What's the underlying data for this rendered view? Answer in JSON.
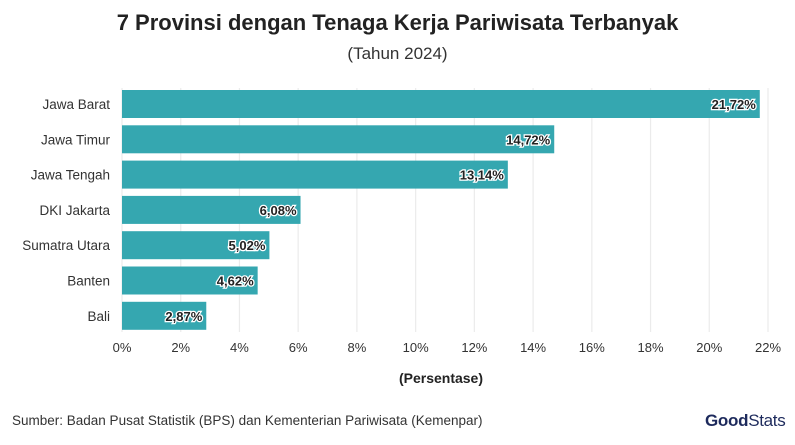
{
  "chart_data": {
    "type": "bar",
    "orientation": "horizontal",
    "title": "7 Provinsi dengan Tenaga Kerja Pariwisata Terbanyak",
    "subtitle": "(Tahun 2024)",
    "xlabel": "(Persentase)",
    "ylabel": "",
    "categories": [
      "Jawa Barat",
      "Jawa Timur",
      "Jawa Tengah",
      "DKI Jakarta",
      "Sumatra Utara",
      "Banten",
      "Bali"
    ],
    "values": [
      21.72,
      14.72,
      13.14,
      6.08,
      5.02,
      4.62,
      2.87
    ],
    "data_labels": [
      "21,72%",
      "14,72%",
      "13,14%",
      "6,08%",
      "5,02%",
      "4,62%",
      "2,87%"
    ],
    "xlim": [
      0,
      22
    ],
    "x_ticks": [
      "0%",
      "2%",
      "4%",
      "6%",
      "8%",
      "10%",
      "12%",
      "14%",
      "16%",
      "18%",
      "20%",
      "22%"
    ],
    "grid": true,
    "bar_color": "#35a7b0"
  },
  "footer": {
    "source": "Sumber: Badan Pusat Statistik (BPS) dan Kementerian Pariwisata (Kemenpar)",
    "logo_text_bold": "Good",
    "logo_text": "Stats"
  }
}
